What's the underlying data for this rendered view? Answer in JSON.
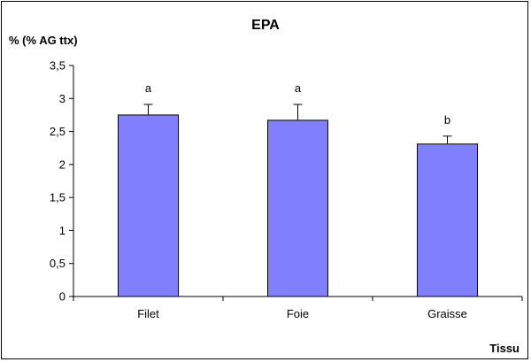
{
  "chart_data": {
    "type": "bar",
    "title": "EPA",
    "ylabel": "% (% AG ttx)",
    "xlabel": "Tissu",
    "categories": [
      "Filet",
      "Foie",
      "Graisse"
    ],
    "values": [
      2.75,
      2.67,
      2.31
    ],
    "error_plus": [
      0.16,
      0.24,
      0.12
    ],
    "significance_labels": [
      "a",
      "a",
      "b"
    ],
    "ylim": [
      0,
      3.5
    ],
    "yticks": [
      0,
      0.5,
      1,
      1.5,
      2,
      2.5,
      3,
      3.5
    ],
    "ytick_labels": [
      "0",
      "0,5",
      "1",
      "1,5",
      "2",
      "2,5",
      "3",
      "3,5"
    ],
    "grid": false,
    "legend": "none",
    "colors": {
      "bar_fill": "#8080ff",
      "bar_stroke": "#000000",
      "axis": "#000000"
    }
  }
}
